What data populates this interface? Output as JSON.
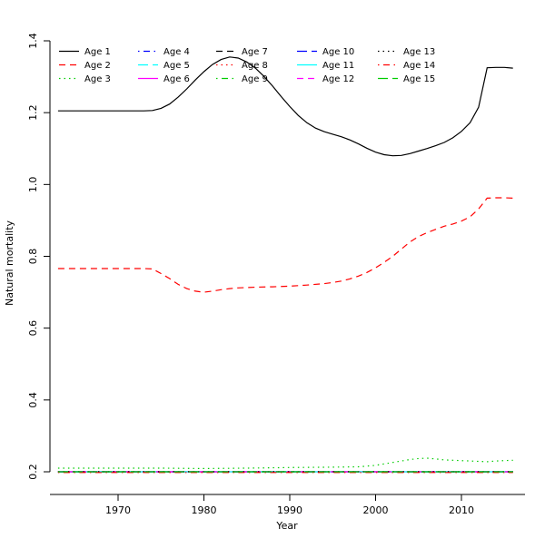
{
  "figure": {
    "background": "#ffffff"
  },
  "chart_data": {
    "type": "line",
    "title": "",
    "xlabel": "Year",
    "ylabel": "Natural mortality",
    "xlim": [
      1963,
      2016
    ],
    "ylim": [
      0.2,
      1.4
    ],
    "x_ticks": [
      1970,
      1980,
      1990,
      2000,
      2010
    ],
    "x_tick_labels": [
      "1970",
      "1980",
      "1990",
      "2000",
      "2010"
    ],
    "y_ticks": [
      0.2,
      0.4,
      0.6,
      0.8,
      1.0,
      1.2,
      1.4
    ],
    "y_tick_labels": [
      "0.2",
      "0.4",
      "0.6",
      "0.8",
      "1.0",
      "1.2",
      "1.4"
    ],
    "grid": false,
    "legend": {
      "position": "top-left",
      "columns": 5,
      "rows": 3,
      "order": "column-major"
    },
    "series": [
      {
        "name": "Age 1",
        "color": "#000000",
        "linetype": "solid",
        "points": [
          [
            1963,
            1.205
          ],
          [
            1973,
            1.205
          ],
          [
            1974,
            1.206
          ],
          [
            1975,
            1.212
          ],
          [
            1976,
            1.224
          ],
          [
            1977,
            1.243
          ],
          [
            1978,
            1.266
          ],
          [
            1979,
            1.291
          ],
          [
            1980,
            1.314
          ],
          [
            1981,
            1.334
          ],
          [
            1982,
            1.348
          ],
          [
            1983,
            1.355
          ],
          [
            1984,
            1.352
          ],
          [
            1985,
            1.341
          ],
          [
            1986,
            1.324
          ],
          [
            1987,
            1.301
          ],
          [
            1988,
            1.274
          ],
          [
            1989,
            1.245
          ],
          [
            1990,
            1.217
          ],
          [
            1991,
            1.192
          ],
          [
            1992,
            1.172
          ],
          [
            1993,
            1.157
          ],
          [
            1994,
            1.147
          ],
          [
            1995,
            1.14
          ],
          [
            1996,
            1.133
          ],
          [
            1997,
            1.124
          ],
          [
            1998,
            1.113
          ],
          [
            1999,
            1.101
          ],
          [
            2000,
            1.09
          ],
          [
            2001,
            1.083
          ],
          [
            2002,
            1.08
          ],
          [
            2003,
            1.081
          ],
          [
            2004,
            1.086
          ],
          [
            2005,
            1.093
          ],
          [
            2006,
            1.1
          ],
          [
            2007,
            1.108
          ],
          [
            2008,
            1.117
          ],
          [
            2009,
            1.13
          ],
          [
            2010,
            1.148
          ],
          [
            2011,
            1.172
          ],
          [
            2012,
            1.215
          ],
          [
            2013,
            1.325
          ],
          [
            2014,
            1.326
          ],
          [
            2015,
            1.326
          ],
          [
            2016,
            1.324
          ]
        ]
      },
      {
        "name": "Age 2",
        "color": "#FF0000",
        "linetype": "dashed",
        "points": [
          [
            1963,
            0.766
          ],
          [
            1973,
            0.766
          ],
          [
            1974,
            0.765
          ],
          [
            1975,
            0.752
          ],
          [
            1976,
            0.738
          ],
          [
            1977,
            0.722
          ],
          [
            1978,
            0.71
          ],
          [
            1979,
            0.703
          ],
          [
            1980,
            0.7
          ],
          [
            1981,
            0.703
          ],
          [
            1982,
            0.707
          ],
          [
            1983,
            0.71
          ],
          [
            1984,
            0.712
          ],
          [
            1985,
            0.713
          ],
          [
            1986,
            0.714
          ],
          [
            1988,
            0.715
          ],
          [
            1990,
            0.717
          ],
          [
            1992,
            0.72
          ],
          [
            1994,
            0.724
          ],
          [
            1995,
            0.727
          ],
          [
            1996,
            0.731
          ],
          [
            1997,
            0.737
          ],
          [
            1998,
            0.745
          ],
          [
            1999,
            0.755
          ],
          [
            2000,
            0.768
          ],
          [
            2001,
            0.783
          ],
          [
            2002,
            0.8
          ],
          [
            2003,
            0.82
          ],
          [
            2004,
            0.84
          ],
          [
            2005,
            0.855
          ],
          [
            2006,
            0.866
          ],
          [
            2007,
            0.875
          ],
          [
            2008,
            0.884
          ],
          [
            2009,
            0.89
          ],
          [
            2010,
            0.898
          ],
          [
            2011,
            0.91
          ],
          [
            2012,
            0.932
          ],
          [
            2013,
            0.962
          ],
          [
            2014,
            0.963
          ],
          [
            2015,
            0.963
          ],
          [
            2016,
            0.962
          ]
        ]
      },
      {
        "name": "Age 3",
        "color": "#00CD00",
        "linetype": "dotted",
        "points": [
          [
            1963,
            0.21
          ],
          [
            1975,
            0.21
          ],
          [
            1980,
            0.209
          ],
          [
            1985,
            0.21
          ],
          [
            1990,
            0.212
          ],
          [
            1995,
            0.213
          ],
          [
            1998,
            0.214
          ],
          [
            2000,
            0.218
          ],
          [
            2002,
            0.226
          ],
          [
            2004,
            0.234
          ],
          [
            2005,
            0.237
          ],
          [
            2006,
            0.238
          ],
          [
            2007,
            0.236
          ],
          [
            2008,
            0.233
          ],
          [
            2010,
            0.231
          ],
          [
            2012,
            0.229
          ],
          [
            2013,
            0.228
          ],
          [
            2014,
            0.23
          ],
          [
            2015,
            0.231
          ],
          [
            2016,
            0.232
          ]
        ]
      },
      {
        "name": "Age 4",
        "color": "#0000FF",
        "linetype": "dotdash",
        "points": [
          [
            1963,
            0.2
          ],
          [
            2016,
            0.2
          ]
        ]
      },
      {
        "name": "Age 5",
        "color": "#00FFFF",
        "linetype": "longdash",
        "points": [
          [
            1963,
            0.2
          ],
          [
            2016,
            0.2
          ]
        ]
      },
      {
        "name": "Age 6",
        "color": "#FF00FF",
        "linetype": "solid",
        "points": [
          [
            1963,
            0.2
          ],
          [
            2016,
            0.2
          ]
        ]
      },
      {
        "name": "Age 7",
        "color": "#000000",
        "linetype": "dashed",
        "points": [
          [
            1963,
            0.2
          ],
          [
            2016,
            0.2
          ]
        ]
      },
      {
        "name": "Age 8",
        "color": "#FF0000",
        "linetype": "dotted",
        "points": [
          [
            1963,
            0.201
          ],
          [
            2016,
            0.201
          ]
        ]
      },
      {
        "name": "Age 9",
        "color": "#00CD00",
        "linetype": "dotdash",
        "points": [
          [
            1963,
            0.2
          ],
          [
            2016,
            0.2
          ]
        ]
      },
      {
        "name": "Age 10",
        "color": "#0000FF",
        "linetype": "longdash",
        "points": [
          [
            1963,
            0.2
          ],
          [
            2016,
            0.2
          ]
        ]
      },
      {
        "name": "Age 11",
        "color": "#00FFFF",
        "linetype": "solid",
        "points": [
          [
            1963,
            0.2
          ],
          [
            2016,
            0.2
          ]
        ]
      },
      {
        "name": "Age 12",
        "color": "#FF00FF",
        "linetype": "dashed",
        "points": [
          [
            1963,
            0.2
          ],
          [
            2016,
            0.2
          ]
        ]
      },
      {
        "name": "Age 13",
        "color": "#000000",
        "linetype": "dotted",
        "points": [
          [
            1963,
            0.2
          ],
          [
            2016,
            0.2
          ]
        ]
      },
      {
        "name": "Age 14",
        "color": "#FF0000",
        "linetype": "dotdash",
        "points": [
          [
            1963,
            0.198
          ],
          [
            2016,
            0.198
          ]
        ]
      },
      {
        "name": "Age 15",
        "color": "#00CD00",
        "linetype": "longdash",
        "points": [
          [
            1963,
            0.2
          ],
          [
            2016,
            0.2
          ]
        ]
      }
    ]
  }
}
